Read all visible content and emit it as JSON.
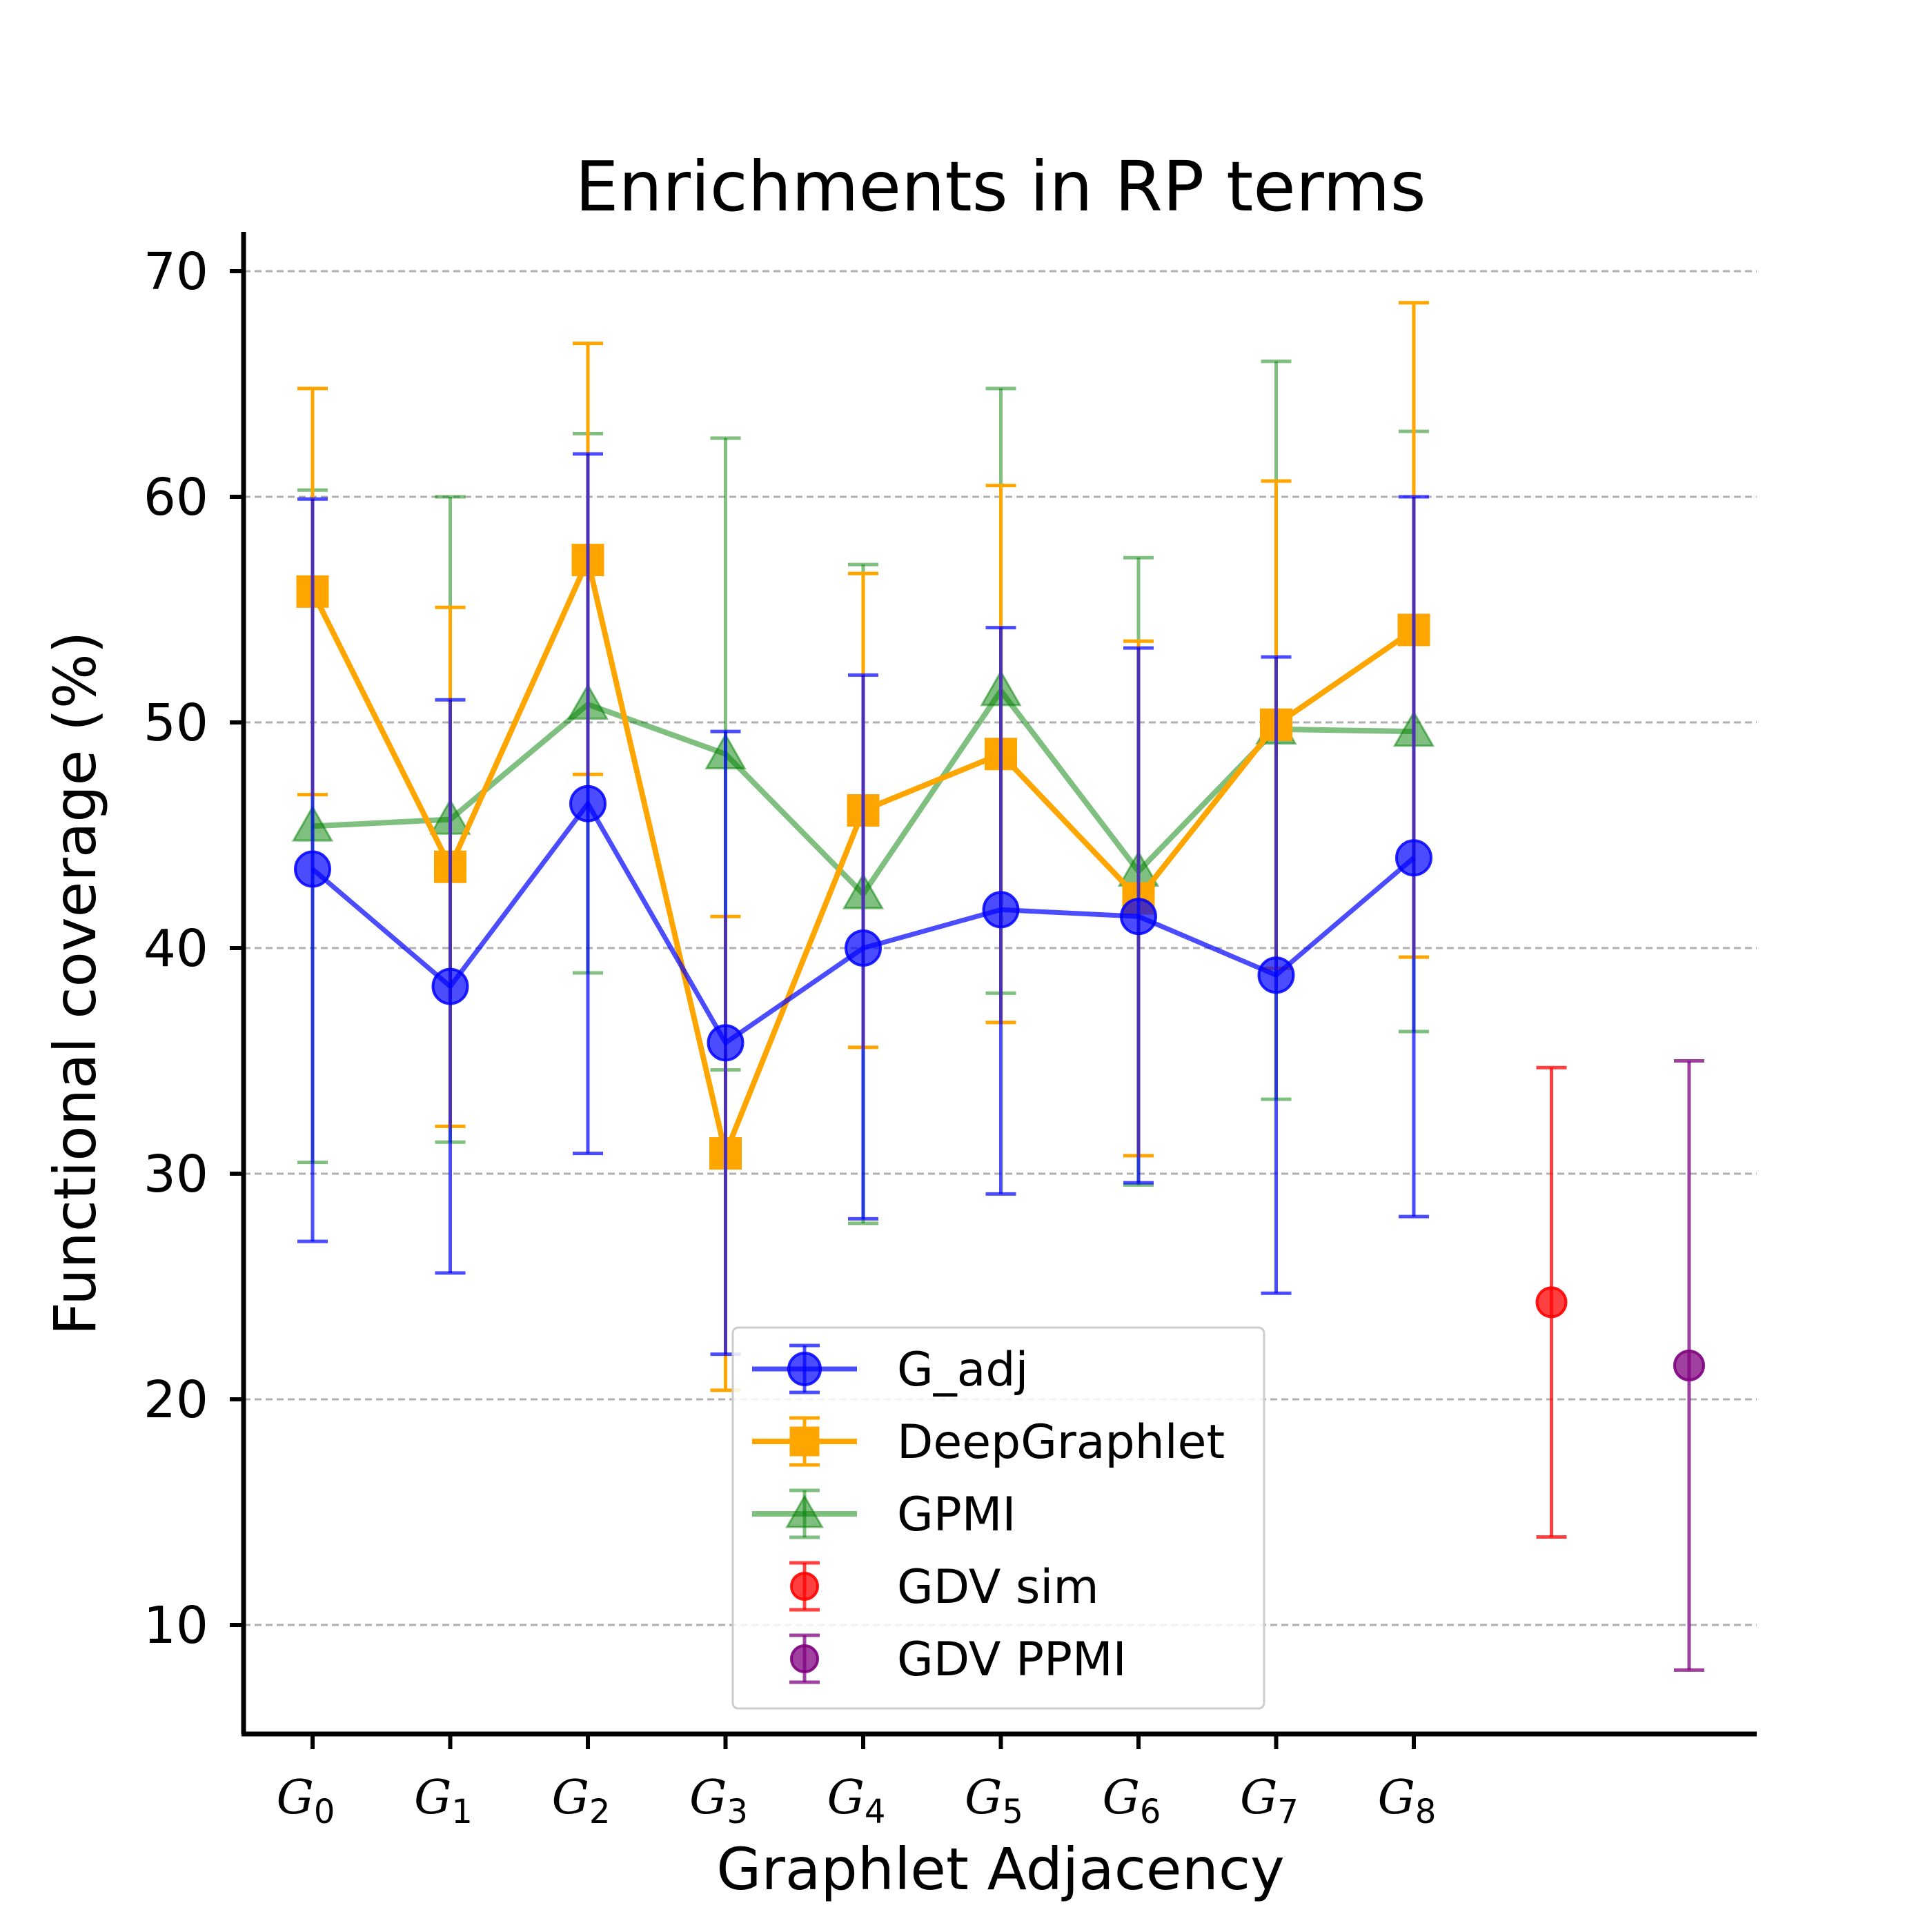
{
  "chart_data": {
    "type": "line",
    "title": "Enrichments in RP terms",
    "xlabel": "Graphlet Adjacency",
    "ylabel": "Functional coverage (%)",
    "ylim": [
      5,
      72
    ],
    "yticks": [
      10,
      20,
      30,
      40,
      50,
      60,
      70
    ],
    "grid": "horizontal dashed",
    "legend_position": "lower-center",
    "categories": [
      "G0",
      "G1",
      "G2",
      "G3",
      "G4",
      "G5",
      "G6",
      "G7",
      "G8"
    ],
    "category_labels": [
      {
        "base": "G",
        "sub": "0"
      },
      {
        "base": "G",
        "sub": "1"
      },
      {
        "base": "G",
        "sub": "2"
      },
      {
        "base": "G",
        "sub": "3"
      },
      {
        "base": "G",
        "sub": "4"
      },
      {
        "base": "G",
        "sub": "5"
      },
      {
        "base": "G",
        "sub": "6"
      },
      {
        "base": "G",
        "sub": "7"
      },
      {
        "base": "G",
        "sub": "8"
      }
    ],
    "series": [
      {
        "name": "G_adj",
        "color": "#0000ff",
        "marker": "circle",
        "x": [
          0,
          1,
          2,
          3,
          4,
          5,
          6,
          7,
          8
        ],
        "values": [
          43.5,
          38.3,
          46.4,
          35.8,
          40.0,
          41.7,
          41.4,
          38.8,
          44.0
        ],
        "err_low": [
          27.0,
          25.6,
          30.9,
          22.0,
          28.0,
          29.1,
          29.6,
          24.7,
          28.1
        ],
        "err_high": [
          59.9,
          51.0,
          61.9,
          49.6,
          52.1,
          54.2,
          53.3,
          52.9,
          60.0
        ]
      },
      {
        "name": "DeepGraphlet",
        "color": "#ffa500",
        "marker": "square",
        "x": [
          0,
          1,
          2,
          3,
          4,
          5,
          6,
          7,
          8
        ],
        "values": [
          55.8,
          43.6,
          57.2,
          30.9,
          46.1,
          48.6,
          42.2,
          49.9,
          54.1
        ],
        "err_low": [
          46.8,
          32.1,
          47.7,
          20.4,
          35.6,
          36.7,
          30.8,
          39.1,
          39.6
        ],
        "err_high": [
          64.8,
          55.1,
          66.8,
          41.4,
          56.6,
          60.5,
          53.6,
          60.7,
          68.6
        ]
      },
      {
        "name": "GPMI",
        "color": "#008000",
        "marker": "triangle",
        "x": [
          0,
          1,
          2,
          3,
          4,
          5,
          6,
          7,
          8
        ],
        "values": [
          45.4,
          45.7,
          50.8,
          48.6,
          42.4,
          51.4,
          43.4,
          49.7,
          49.6
        ],
        "err_low": [
          30.5,
          31.4,
          38.9,
          34.6,
          27.8,
          38.0,
          29.5,
          33.3,
          36.3
        ],
        "err_high": [
          60.3,
          60.0,
          62.8,
          62.6,
          57.0,
          64.8,
          57.3,
          66.0,
          62.9
        ]
      },
      {
        "name": "GDV sim",
        "color": "#ff0000",
        "marker": "circle",
        "x": [
          9.0
        ],
        "values": [
          24.3
        ],
        "err_low": [
          13.9
        ],
        "err_high": [
          34.7
        ]
      },
      {
        "name": "GDV PPMI",
        "color": "#800080",
        "marker": "circle",
        "x": [
          10.0
        ],
        "values": [
          21.5
        ],
        "err_low": [
          8.0
        ],
        "err_high": [
          35.0
        ]
      }
    ]
  }
}
